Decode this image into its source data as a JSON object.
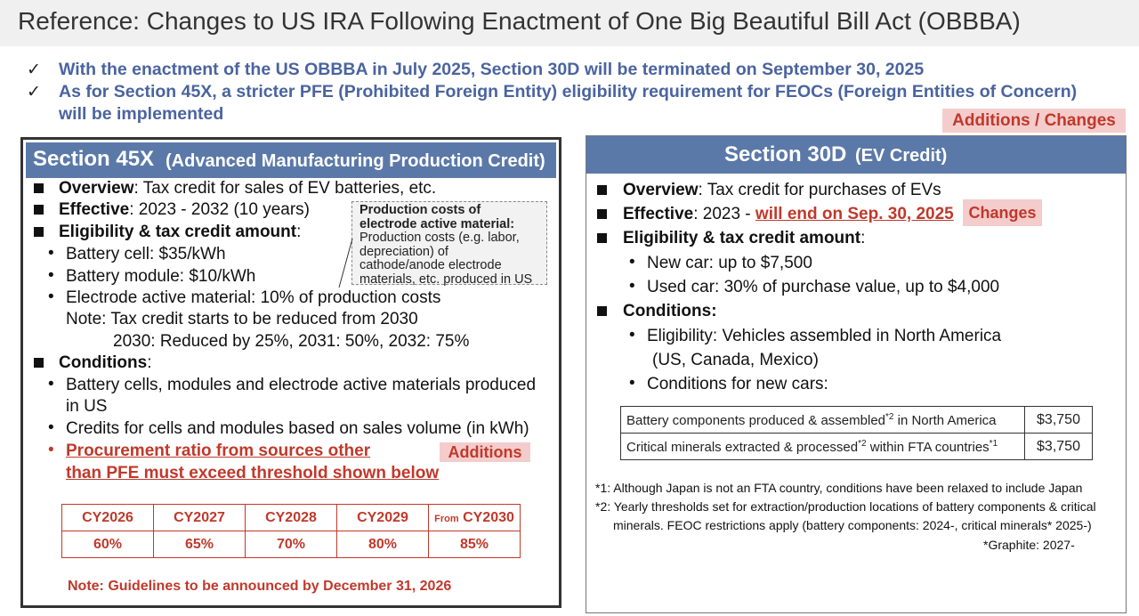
{
  "title": "Reference: Changes to US IRA Following Enactment of One Big Beautiful Bill Act (OBBBA)",
  "intro": {
    "check_symbol": "✓",
    "line1": "With the enactment of the US OBBBA in July 2025, Section 30D will be terminated on September 30, 2025",
    "line2": "As for Section 45X, a stricter PFE (Prohibited Foreign Entity) eligibility requirement for FEOCs (Foreign Entities of Concern)",
    "line3": "will be implemented"
  },
  "tag_top": "Additions / Changes",
  "left": {
    "header_main": "Section 45X",
    "header_sub": "(Advanced Manufacturing Production Credit)",
    "overview_label": "Overview",
    "overview_text": ": Tax credit for sales of EV batteries, etc.",
    "effective_label": "Effective",
    "effective_text": ": 2023 - 2032 (10 years)",
    "eligibility_label": "Eligibility & tax credit amount",
    "eligibility_colon": ":",
    "items": [
      "Battery cell: $35/kWh",
      "Battery module: $10/kWh",
      "Electrode active material: 10% of production costs"
    ],
    "note1": "Note: Tax credit starts to be reduced from 2030",
    "note2": "2030: Reduced by 25%, 2031: 50%, 2032: 75%",
    "conditions_label": "Conditions",
    "conditions_colon": ":",
    "cond1a": "Battery cells, modules and electrode active materials produced",
    "cond1b": "in US",
    "cond2": "Credits for cells and modules based on sales volume (in kWh)",
    "cond3a": "Procurement ratio from sources other",
    "cond3b": "than PFE must exceed threshold shown below",
    "tag_additions": "Additions",
    "note_box": {
      "title1": "Production costs of",
      "title2": "electrode active material:",
      "body1": "Production costs (e.g. labor,",
      "body2": "depreciation) of",
      "body3": "cathode/anode electrode",
      "body4": "materials, etc. produced in US"
    },
    "threshold_table": {
      "years": [
        "CY2026",
        "CY2027",
        "CY2028",
        "CY2029",
        "CY2030"
      ],
      "from_prefix": "From",
      "values": [
        "60%",
        "65%",
        "70%",
        "80%",
        "85%"
      ]
    },
    "bottom_note": "Note: Guidelines to be announced by December 31, 2026"
  },
  "right": {
    "header_main": "Section 30D",
    "header_sub": "(EV Credit)",
    "overview_label": "Overview",
    "overview_text": ": Tax credit for purchases of EVs",
    "effective_label": "Effective",
    "effective_text": ": 2023 - ",
    "effective_end": "will end on Sep. 30, 2025",
    "tag_changes": "Changes",
    "eligibility_label": "Eligibility & tax credit amount",
    "eligibility_colon": ":",
    "new_car": "New car: up to $7,500",
    "used_car": "Used car: 30% of purchase value, up to $4,000",
    "conditions_label": "Conditions:",
    "cond_elig1": "Eligibility: Vehicles assembled in North America",
    "cond_elig2": "(US, Canada, Mexico)",
    "cond_new": "Conditions for new cars:",
    "table": {
      "row1_label": "Battery components produced & assembled",
      "row1_sup": "*2",
      "row1_tail": " in North America",
      "row1_value": "$3,750",
      "row2_label": "Critical minerals extracted & processed",
      "row2_sup": "*2",
      "row2_mid": " within FTA countries",
      "row2_sup2": "*1",
      "row2_value": "$3,750"
    },
    "footnote1": "*1: Although Japan is not an FTA country, conditions have been relaxed to include Japan",
    "footnote2a": "*2: Yearly thresholds set for extraction/production locations of battery components & critical",
    "footnote2b": "minerals. FEOC restrictions apply (battery components: 2024-, critical minerals* 2025-)",
    "footnote3": "*Graphite: 2027-"
  },
  "colors": {
    "header_blue": "#5b79a8",
    "intro_blue": "#4a64a0",
    "accent_red": "#c0392b",
    "tag_pink": "#f4cccc"
  }
}
